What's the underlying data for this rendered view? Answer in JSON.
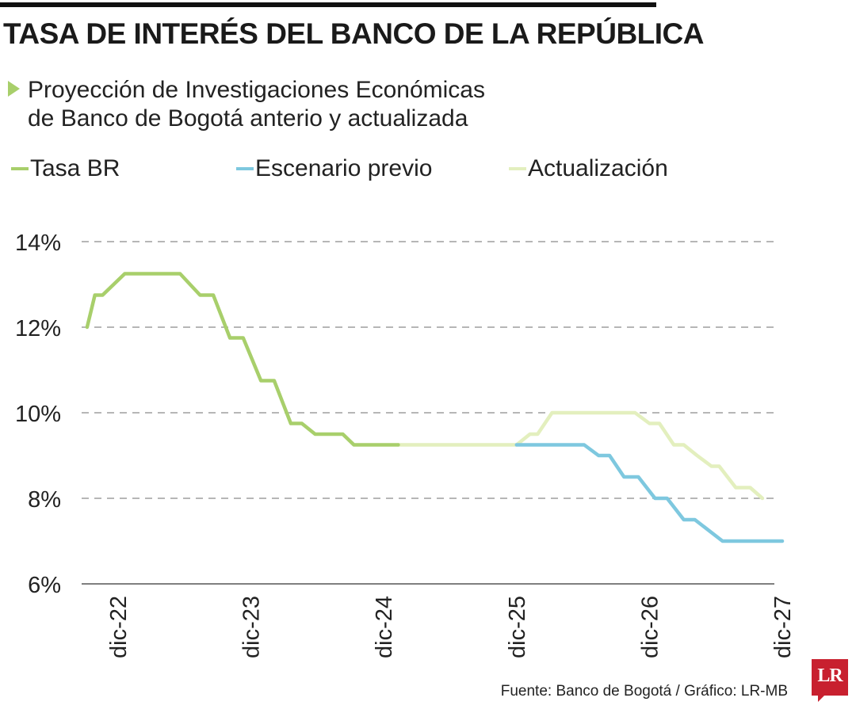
{
  "header": {
    "title": "TASA DE INTERÉS DEL BANCO DE LA REPÚBLICA",
    "subtitle_line1": "Proyección de Investigaciones Económicas",
    "subtitle_line2": "de Banco de Bogotá anterio y actualizada"
  },
  "legend": [
    {
      "label": "Tasa BR",
      "color": "#a8cf6b"
    },
    {
      "label": "Escenario previo",
      "color": "#7ec8df"
    },
    {
      "label": "Actualización",
      "color": "#e3efbe"
    }
  ],
  "chart_data": {
    "type": "line",
    "title": "TASA DE INTERÉS DEL BANCO DE LA REPÚBLICA",
    "subtitle": "Proyección de Investigaciones Económicas de Banco de Bogotá anterio y actualizada",
    "xlabel": "",
    "ylabel": "",
    "x_unit": "months since dic-22",
    "x_ticks": [
      {
        "value": 0,
        "label": "dic-22"
      },
      {
        "value": 12,
        "label": "dic-23"
      },
      {
        "value": 24,
        "label": "dic-24"
      },
      {
        "value": 36,
        "label": "dic-25"
      },
      {
        "value": 48,
        "label": "dic-26"
      },
      {
        "value": 60,
        "label": "dic-27"
      }
    ],
    "xlim": [
      -3,
      60
    ],
    "ylim": [
      6,
      14
    ],
    "y_ticks": [
      {
        "value": 6,
        "label": "6%"
      },
      {
        "value": 8,
        "label": "8%"
      },
      {
        "value": 10,
        "label": "10%"
      },
      {
        "value": 12,
        "label": "12%"
      },
      {
        "value": 14,
        "label": "14%"
      }
    ],
    "grid": "horizontal dashed",
    "series": [
      {
        "name": "Tasa BR",
        "color": "#a8cf6b",
        "points": [
          [
            -2.8,
            12.0
          ],
          [
            -2.1,
            12.75
          ],
          [
            -1.4,
            12.75
          ],
          [
            0.6,
            13.25
          ],
          [
            5.6,
            13.25
          ],
          [
            7.4,
            12.75
          ],
          [
            8.6,
            12.75
          ],
          [
            10.1,
            11.75
          ],
          [
            11.3,
            11.75
          ],
          [
            12.9,
            10.75
          ],
          [
            14.1,
            10.75
          ],
          [
            15.6,
            9.75
          ],
          [
            16.6,
            9.75
          ],
          [
            17.8,
            9.5
          ],
          [
            20.3,
            9.5
          ],
          [
            21.3,
            9.25
          ],
          [
            25.3,
            9.25
          ]
        ]
      },
      {
        "name": "Escenario previo",
        "color": "#7ec8df",
        "points": [
          [
            36.0,
            9.25
          ],
          [
            42.1,
            9.25
          ],
          [
            43.4,
            9.0
          ],
          [
            44.4,
            9.0
          ],
          [
            45.7,
            8.5
          ],
          [
            47.0,
            8.5
          ],
          [
            48.5,
            8.0
          ],
          [
            49.6,
            8.0
          ],
          [
            51.1,
            7.5
          ],
          [
            52.1,
            7.5
          ],
          [
            54.6,
            7.0
          ],
          [
            60.0,
            7.0
          ]
        ]
      },
      {
        "name": "Actualización",
        "color": "#e3efbe",
        "points": [
          [
            25.3,
            9.25
          ],
          [
            26.6,
            9.25
          ],
          [
            27.6,
            9.25
          ],
          [
            36.0,
            9.25
          ],
          [
            37.2,
            9.5
          ],
          [
            37.9,
            9.5
          ],
          [
            39.2,
            10.0
          ],
          [
            45.7,
            10.0
          ],
          [
            46.7,
            10.0
          ],
          [
            48.0,
            9.75
          ],
          [
            48.9,
            9.75
          ],
          [
            50.2,
            9.25
          ],
          [
            51.1,
            9.25
          ],
          [
            52.3,
            9.0
          ],
          [
            53.6,
            8.75
          ],
          [
            54.3,
            8.75
          ],
          [
            55.8,
            8.25
          ],
          [
            57.1,
            8.25
          ],
          [
            58.2,
            8.0
          ]
        ]
      }
    ]
  },
  "footer": {
    "source": "Fuente: Banco de Bogotá / Gráfico: LR-MB",
    "logo_text": "LR",
    "logo_color": "#c8202f"
  }
}
